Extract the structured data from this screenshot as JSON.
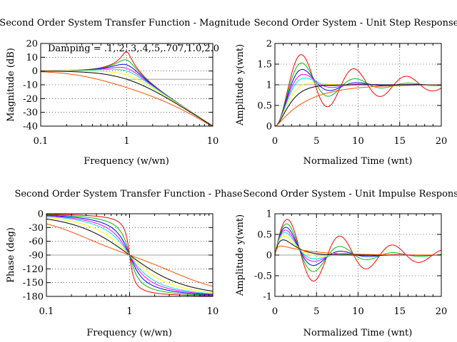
{
  "chart_data": [
    {
      "id": "magnitude",
      "type": "line",
      "title": "Second Order System Transfer Function - Magnitude",
      "xlabel": "Frequency (w/wn)",
      "ylabel": "Magnitude (dB)",
      "xscale": "log",
      "xlim": [
        0.1,
        10
      ],
      "ylim": [
        -40,
        20
      ],
      "xticks": [
        "0.1",
        "1",
        "10"
      ],
      "yticks": [
        "20",
        "10",
        "0",
        "-10",
        "-20",
        "-30",
        "-40"
      ],
      "annotation": "Damping = .1,.2,.3,.4,.5,.707,1.0,2.0",
      "reference_line": {
        "y": -6,
        "x_from": 1,
        "x_to": 10
      },
      "series": [
        {
          "name": "zeta=0.1",
          "zeta": 0.1,
          "color": "#ff0000"
        },
        {
          "name": "zeta=0.2",
          "zeta": 0.2,
          "color": "#00c000"
        },
        {
          "name": "zeta=0.3",
          "zeta": 0.3,
          "color": "#0000ff"
        },
        {
          "name": "zeta=0.4",
          "zeta": 0.4,
          "color": "#ff00ff"
        },
        {
          "name": "zeta=0.5",
          "zeta": 0.5,
          "color": "#00e0e0"
        },
        {
          "name": "zeta=0.707",
          "zeta": 0.707,
          "color": "#ffff00"
        },
        {
          "name": "zeta=1.0",
          "zeta": 1.0,
          "color": "#000000"
        },
        {
          "name": "zeta=2.0",
          "zeta": 2.0,
          "color": "#ff5000"
        }
      ]
    },
    {
      "id": "step",
      "type": "line",
      "title": "Second Order System - Unit Step Response",
      "xlabel": "Normalized Time (wnt)",
      "ylabel": "Amplitude y(wnt)",
      "xlim": [
        0,
        20
      ],
      "ylim": [
        0,
        2
      ],
      "xticks": [
        "0",
        "5",
        "10",
        "15",
        "20"
      ],
      "yticks": [
        "2",
        "1.5",
        "1",
        "0.5",
        "0"
      ],
      "reference_line": {
        "y": 1
      },
      "series": [
        {
          "name": "zeta=0.1",
          "zeta": 0.1,
          "color": "#ff0000"
        },
        {
          "name": "zeta=0.2",
          "zeta": 0.2,
          "color": "#00c000"
        },
        {
          "name": "zeta=0.3",
          "zeta": 0.3,
          "color": "#0000ff"
        },
        {
          "name": "zeta=0.4",
          "zeta": 0.4,
          "color": "#ff00ff"
        },
        {
          "name": "zeta=0.5",
          "zeta": 0.5,
          "color": "#00e0e0"
        },
        {
          "name": "zeta=0.707",
          "zeta": 0.707,
          "color": "#ffff00"
        },
        {
          "name": "zeta=1.0",
          "zeta": 1.0,
          "color": "#000000"
        },
        {
          "name": "zeta=2.0",
          "zeta": 2.0,
          "color": "#ff5000"
        }
      ]
    },
    {
      "id": "phase",
      "type": "line",
      "title": "Second Order System Transfer Function - Phase",
      "xlabel": "Frequency (w/wn)",
      "ylabel": "Phase (deg)",
      "xscale": "log",
      "xlim": [
        0.1,
        10
      ],
      "ylim": [
        -180,
        0
      ],
      "xticks": [
        "0.1",
        "1",
        "10"
      ],
      "yticks": [
        "0",
        "-30",
        "-60",
        "-90",
        "-120",
        "-150",
        "-180"
      ],
      "reference_line": {
        "y": -90
      },
      "series": [
        {
          "name": "zeta=0.1",
          "zeta": 0.1,
          "color": "#ff0000"
        },
        {
          "name": "zeta=0.2",
          "zeta": 0.2,
          "color": "#00c000"
        },
        {
          "name": "zeta=0.3",
          "zeta": 0.3,
          "color": "#0000ff"
        },
        {
          "name": "zeta=0.4",
          "zeta": 0.4,
          "color": "#ff00ff"
        },
        {
          "name": "zeta=0.5",
          "zeta": 0.5,
          "color": "#00e0e0"
        },
        {
          "name": "zeta=0.707",
          "zeta": 0.707,
          "color": "#ffff00"
        },
        {
          "name": "zeta=1.0",
          "zeta": 1.0,
          "color": "#000000"
        },
        {
          "name": "zeta=2.0",
          "zeta": 2.0,
          "color": "#ff5000"
        }
      ]
    },
    {
      "id": "impulse",
      "type": "line",
      "title": "Second Order System - Unit Impulse Response",
      "xlabel": "Normalized Time (wnt)",
      "ylabel": "Amplitude y(wnt)",
      "xlim": [
        0,
        20
      ],
      "ylim": [
        -1,
        1
      ],
      "xticks": [
        "0",
        "5",
        "10",
        "15",
        "20"
      ],
      "yticks": [
        "1",
        "0.5",
        "0",
        "-0.5",
        "-1"
      ],
      "reference_line": {
        "y": 0
      },
      "series": [
        {
          "name": "zeta=0.1",
          "zeta": 0.1,
          "color": "#ff0000"
        },
        {
          "name": "zeta=0.2",
          "zeta": 0.2,
          "color": "#00c000"
        },
        {
          "name": "zeta=0.3",
          "zeta": 0.3,
          "color": "#0000ff"
        },
        {
          "name": "zeta=0.4",
          "zeta": 0.4,
          "color": "#ff00ff"
        },
        {
          "name": "zeta=0.5",
          "zeta": 0.5,
          "color": "#00e0e0"
        },
        {
          "name": "zeta=0.707",
          "zeta": 0.707,
          "color": "#ffff00"
        },
        {
          "name": "zeta=1.0",
          "zeta": 1.0,
          "color": "#000000"
        },
        {
          "name": "zeta=2.0",
          "zeta": 2.0,
          "color": "#ff5000"
        }
      ]
    }
  ]
}
